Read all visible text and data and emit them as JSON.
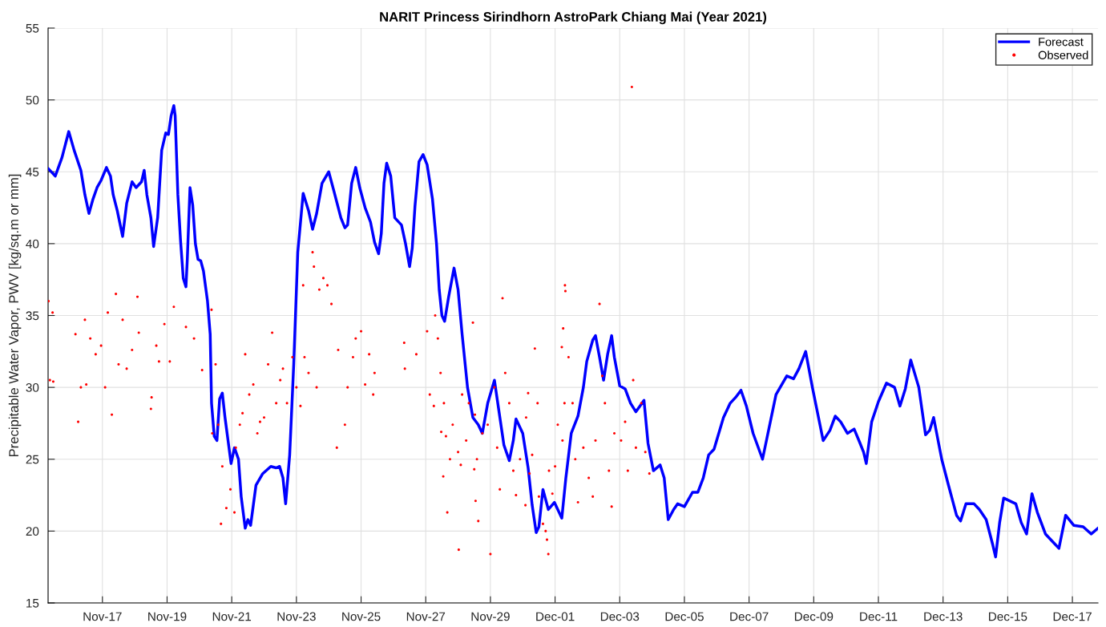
{
  "chart_data": {
    "type": "line",
    "title": "NARIT Princess Sirindhorn AstroPark Chiang Mai (Year 2021)",
    "ylabel": "Precipitable Water Vapor, PWV [kg/sq.m or mm]",
    "xlim": [
      "2021-11-15T07:40",
      "2021-12-17T19:00"
    ],
    "xticks": [
      {
        "value": "2021-11-17",
        "label": "Nov-17"
      },
      {
        "value": "2021-11-19",
        "label": "Nov-19"
      },
      {
        "value": "2021-11-21",
        "label": "Nov-21"
      },
      {
        "value": "2021-11-23",
        "label": "Nov-23"
      },
      {
        "value": "2021-11-25",
        "label": "Nov-25"
      },
      {
        "value": "2021-11-27",
        "label": "Nov-27"
      },
      {
        "value": "2021-11-29",
        "label": "Nov-29"
      },
      {
        "value": "2021-12-01",
        "label": "Dec-01"
      },
      {
        "value": "2021-12-03",
        "label": "Dec-03"
      },
      {
        "value": "2021-12-05",
        "label": "Dec-05"
      },
      {
        "value": "2021-12-07",
        "label": "Dec-07"
      },
      {
        "value": "2021-12-09",
        "label": "Dec-09"
      },
      {
        "value": "2021-12-11",
        "label": "Dec-11"
      },
      {
        "value": "2021-12-13",
        "label": "Dec-13"
      },
      {
        "value": "2021-12-15",
        "label": "Dec-15"
      },
      {
        "value": "2021-12-17",
        "label": "Dec-17"
      }
    ],
    "ylim": [
      15,
      55
    ],
    "yticks": [
      15,
      20,
      25,
      30,
      35,
      40,
      45,
      50,
      55
    ],
    "grid": true,
    "legend": "top right",
    "series": [
      {
        "name": "Forecast",
        "color": "#0000ff",
        "marker": "none",
        "line_style": "solid",
        "x": [
          "2021-11-15T08:00",
          "2021-11-15T13:00",
          "2021-11-15T18:00",
          "2021-11-15T23:00",
          "2021-11-16T03:00",
          "2021-11-16T08:00",
          "2021-11-16T11:00",
          "2021-11-16T14:00",
          "2021-11-16T17:00",
          "2021-11-16T20:00",
          "2021-11-16T23:00",
          "2021-11-17T03:00",
          "2021-11-17T06:00",
          "2021-11-17T08:00",
          "2021-11-17T11:00",
          "2021-11-17T15:00",
          "2021-11-17T18:00",
          "2021-11-17T22:00",
          "2021-11-18T01:00",
          "2021-11-18T05:00",
          "2021-11-18T07:00",
          "2021-11-18T09:00",
          "2021-11-18T12:00",
          "2021-11-18T14:00",
          "2021-11-18T17:00",
          "2021-11-18T20:00",
          "2021-11-18T23:00",
          "2021-11-19T01:00",
          "2021-11-19T03:00",
          "2021-11-19T05:00",
          "2021-11-19T06:00",
          "2021-11-19T08:00",
          "2021-11-19T10:00",
          "2021-11-19T12:00",
          "2021-11-19T14:00",
          "2021-11-19T15:00",
          "2021-11-19T17:00",
          "2021-11-19T19:00",
          "2021-11-19T21:00",
          "2021-11-19T23:00",
          "2021-11-20T01:00",
          "2021-11-20T03:00",
          "2021-11-20T06:00",
          "2021-11-20T08:00",
          "2021-11-20T09:00",
          "2021-11-20T11:00",
          "2021-11-20T13:00",
          "2021-11-20T15:00",
          "2021-11-20T17:00",
          "2021-11-20T19:00",
          "2021-11-20T23:30",
          "2021-11-21T02:00",
          "2021-11-21T05:00",
          "2021-11-21T07:00",
          "2021-11-21T10:00",
          "2021-11-21T12:00",
          "2021-11-21T14:00",
          "2021-11-21T18:00",
          "2021-11-21T23:00",
          "2021-11-22T05:00",
          "2021-11-22T09:00",
          "2021-11-22T11:30",
          "2021-11-22T14:00",
          "2021-11-22T16:00",
          "2021-11-22T19:00",
          "2021-11-22T22:00",
          "2021-11-23T01:00",
          "2021-11-23T05:00",
          "2021-11-23T09:00",
          "2021-11-23T12:00",
          "2021-11-23T15:00",
          "2021-11-23T19:00",
          "2021-11-24T00:00",
          "2021-11-24T04:00",
          "2021-11-24T09:00",
          "2021-11-24T12:00",
          "2021-11-24T14:00",
          "2021-11-24T17:00",
          "2021-11-24T20:00",
          "2021-11-24T23:00",
          "2021-11-25T03:00",
          "2021-11-25T07:00",
          "2021-11-25T10:00",
          "2021-11-25T13:00",
          "2021-11-25T15:00",
          "2021-11-25T17:00",
          "2021-11-25T19:00",
          "2021-11-25T22:00",
          "2021-11-26T01:00",
          "2021-11-26T06:00",
          "2021-11-26T09:00",
          "2021-11-26T12:00",
          "2021-11-26T14:00",
          "2021-11-26T16:00",
          "2021-11-26T19:00",
          "2021-11-26T22:00",
          "2021-11-27T01:00",
          "2021-11-27T05:00",
          "2021-11-27T08:00",
          "2021-11-27T10:00",
          "2021-11-27T12:00",
          "2021-11-27T14:00",
          "2021-11-27T17:00",
          "2021-11-27T21:00",
          "2021-11-28T00:00",
          "2021-11-28T03:00",
          "2021-11-28T07:00",
          "2021-11-28T11:00",
          "2021-11-28T15:00",
          "2021-11-28T18:00",
          "2021-11-28T22:00",
          "2021-11-29T03:00",
          "2021-11-29T05:00",
          "2021-11-29T10:00",
          "2021-11-29T14:00",
          "2021-11-29T17:00",
          "2021-11-29T19:00",
          "2021-11-30T00:00",
          "2021-11-30T04:00",
          "2021-11-30T07:00",
          "2021-11-30T10:00",
          "2021-11-30T12:00",
          "2021-11-30T15:00",
          "2021-11-30T19:00",
          "2021-11-30T23:30",
          "2021-12-01T05:00",
          "2021-12-01T08:00",
          "2021-12-01T12:00",
          "2021-12-01T17:00",
          "2021-12-01T21:00",
          "2021-12-01T23:30",
          "2021-12-02T04:00",
          "2021-12-02T06:00",
          "2021-12-02T09:00",
          "2021-12-02T12:00",
          "2021-12-02T15:00",
          "2021-12-02T18:00",
          "2021-12-02T20:00",
          "2021-12-03T00:00",
          "2021-12-03T04:00",
          "2021-12-03T08:00",
          "2021-12-03T12:00",
          "2021-12-03T15:00",
          "2021-12-03T18:00",
          "2021-12-03T21:00",
          "2021-12-04T01:00",
          "2021-12-04T06:00",
          "2021-12-04T09:00",
          "2021-12-04T12:00",
          "2021-12-04T16:00",
          "2021-12-04T19:00",
          "2021-12-05T00:00",
          "2021-12-05T06:00",
          "2021-12-05T10:00",
          "2021-12-05T14:00",
          "2021-12-05T18:00",
          "2021-12-05T22:00",
          "2021-12-06T05:00",
          "2021-12-06T10:00",
          "2021-12-06T14:00",
          "2021-12-06T18:00",
          "2021-12-06T22:00",
          "2021-12-07T03:00",
          "2021-12-07T10:00",
          "2021-12-07T20:00",
          "2021-12-08T04:00",
          "2021-12-08T09:00",
          "2021-12-08T13:00",
          "2021-12-08T18:00",
          "2021-12-08T23:00",
          "2021-12-09T07:00",
          "2021-12-09T12:00",
          "2021-12-09T16:00",
          "2021-12-09T20:00",
          "2021-12-10T01:00",
          "2021-12-10T06:00",
          "2021-12-10T10:00",
          "2021-12-10T13:00",
          "2021-12-10T15:00",
          "2021-12-10T19:00",
          "2021-12-11T00:00",
          "2021-12-11T06:00",
          "2021-12-11T12:00",
          "2021-12-11T16:00",
          "2021-12-11T20:00",
          "2021-12-12T00:00",
          "2021-12-12T06:00",
          "2021-12-12T11:00",
          "2021-12-12T14:00",
          "2021-12-12T17:00",
          "2021-12-12T23:00",
          "2021-12-13T04:00",
          "2021-12-13T10:00",
          "2021-12-13T13:00",
          "2021-12-13T17:00",
          "2021-12-13T23:00",
          "2021-12-14T03:00",
          "2021-12-14T08:00",
          "2021-12-14T13:00",
          "2021-12-14T15:00",
          "2021-12-14T18:00",
          "2021-12-14T21:00",
          "2021-12-15T06:00",
          "2021-12-15T10:00",
          "2021-12-15T14:00",
          "2021-12-15T18:00",
          "2021-12-15T22:00",
          "2021-12-16T04:00",
          "2021-12-16T10:00",
          "2021-12-16T14:00",
          "2021-12-16T19:00",
          "2021-12-17T01:00",
          "2021-12-17T08:00",
          "2021-12-17T14:00",
          "2021-12-17T19:00"
        ],
        "values": [
          45.2,
          44.7,
          46.0,
          47.8,
          46.5,
          45.1,
          43.4,
          42.1,
          43.1,
          43.9,
          44.4,
          45.3,
          44.7,
          43.4,
          42.3,
          40.5,
          42.8,
          44.3,
          43.9,
          44.3,
          45.1,
          43.4,
          41.8,
          39.8,
          41.8,
          46.5,
          47.7,
          47.6,
          48.9,
          49.6,
          48.9,
          43.4,
          40.2,
          37.6,
          37.0,
          38.9,
          43.9,
          42.7,
          40.0,
          38.9,
          38.8,
          38.1,
          36.0,
          33.7,
          28.9,
          26.6,
          26.3,
          29.2,
          29.6,
          27.9,
          24.7,
          25.8,
          25.0,
          22.4,
          20.2,
          20.8,
          20.4,
          23.2,
          24.0,
          24.5,
          24.4,
          24.5,
          23.7,
          21.9,
          25.3,
          31.6,
          39.4,
          43.5,
          42.3,
          41.0,
          42.1,
          44.2,
          45.0,
          43.6,
          41.8,
          41.1,
          41.3,
          44.2,
          45.3,
          43.9,
          42.5,
          41.5,
          40.1,
          39.3,
          40.7,
          44.2,
          45.6,
          44.7,
          41.8,
          41.3,
          40.0,
          38.4,
          39.7,
          42.6,
          45.7,
          46.2,
          45.5,
          43.1,
          40.0,
          36.8,
          35.0,
          34.6,
          36.3,
          38.3,
          36.8,
          33.7,
          30.0,
          27.9,
          27.4,
          26.8,
          28.9,
          30.5,
          29.2,
          26.0,
          24.9,
          26.3,
          27.8,
          26.8,
          24.4,
          21.8,
          19.9,
          20.3,
          22.9,
          21.5,
          22.0,
          20.9,
          23.7,
          26.8,
          28.0,
          30.0,
          31.8,
          33.3,
          33.6,
          32.1,
          30.5,
          32.3,
          33.6,
          32.1,
          30.1,
          29.9,
          28.9,
          28.3,
          28.7,
          29.1,
          26.1,
          24.2,
          24.6,
          23.7,
          20.8,
          21.5,
          21.9,
          21.7,
          22.7,
          22.7,
          23.7,
          25.3,
          25.7,
          27.9,
          28.9,
          29.3,
          29.8,
          28.7,
          26.8,
          25.0,
          29.5,
          30.8,
          30.6,
          31.3,
          32.5,
          30.0,
          26.3,
          27.0,
          28.0,
          27.6,
          26.8,
          27.1,
          26.2,
          25.5,
          24.7,
          27.6,
          29.0,
          30.3,
          30.0,
          28.7,
          29.9,
          31.9,
          30.0,
          26.7,
          27.0,
          27.9,
          25.0,
          23.2,
          21.1,
          20.7,
          21.9,
          21.9,
          21.5,
          20.8,
          19.0,
          18.2,
          20.6,
          22.3,
          21.9,
          20.6,
          19.8,
          22.6,
          21.3,
          19.8,
          19.2,
          18.8,
          21.1,
          20.4,
          20.3,
          19.8,
          20.2
        ]
      },
      {
        "name": "Observed",
        "type": "scatter",
        "color": "#ff0000",
        "marker": "circle",
        "x": [
          "2021-11-15T08:00",
          "2021-11-15T09:00",
          "2021-11-15T11:00",
          "2021-11-15T11:30",
          "2021-11-16T04:00",
          "2021-11-16T06:00",
          "2021-11-16T08:00",
          "2021-11-16T11:00",
          "2021-11-16T12:00",
          "2021-11-16T15:00",
          "2021-11-16T19:00",
          "2021-11-16T23:00",
          "2021-11-17T02:00",
          "2021-11-17T04:00",
          "2021-11-17T07:00",
          "2021-11-17T10:00",
          "2021-11-17T12:00",
          "2021-11-17T15:00",
          "2021-11-17T18:00",
          "2021-11-17T22:00",
          "2021-11-18T02:00",
          "2021-11-18T03:00",
          "2021-11-18T12:00",
          "2021-11-18T12:30",
          "2021-11-18T16:00",
          "2021-11-18T18:00",
          "2021-11-18T22:00",
          "2021-11-19T02:00",
          "2021-11-19T05:00",
          "2021-11-19T14:00",
          "2021-11-19T20:00",
          "2021-11-20T02:00",
          "2021-11-20T09:00",
          "2021-11-20T09:30",
          "2021-11-20T12:00",
          "2021-11-20T14:00",
          "2021-11-20T16:00",
          "2021-11-20T17:00",
          "2021-11-20T20:00",
          "2021-11-20T23:00",
          "2021-11-21T02:00",
          "2021-11-21T03:00",
          "2021-11-21T06:00",
          "2021-11-21T08:00",
          "2021-11-21T10:00",
          "2021-11-21T13:00",
          "2021-11-21T16:00",
          "2021-11-21T19:00",
          "2021-11-21T21:00",
          "2021-11-22T00:00",
          "2021-11-22T03:00",
          "2021-11-22T06:00",
          "2021-11-22T09:00",
          "2021-11-22T12:00",
          "2021-11-22T14:00",
          "2021-11-22T17:00",
          "2021-11-22T21:00",
          "2021-11-23T00:00",
          "2021-11-23T03:00",
          "2021-11-23T05:00",
          "2021-11-23T06:00",
          "2021-11-23T09:00",
          "2021-11-23T12:00",
          "2021-11-23T13:00",
          "2021-11-23T15:00",
          "2021-11-23T17:00",
          "2021-11-23T20:00",
          "2021-11-23T23:00",
          "2021-11-24T02:00",
          "2021-11-24T06:00",
          "2021-11-24T07:00",
          "2021-11-24T12:00",
          "2021-11-24T14:00",
          "2021-11-24T18:00",
          "2021-11-24T20:00",
          "2021-11-25T00:00",
          "2021-11-25T03:00",
          "2021-11-25T06:00",
          "2021-11-25T09:00",
          "2021-11-25T10:00",
          "2021-11-26T08:00",
          "2021-11-26T08:30",
          "2021-11-26T17:00",
          "2021-11-27T01:00",
          "2021-11-27T03:00",
          "2021-11-27T06:00",
          "2021-11-27T07:00",
          "2021-11-27T09:00",
          "2021-11-27T11:00",
          "2021-11-27T11:30",
          "2021-11-27T13:00",
          "2021-11-27T13:30",
          "2021-11-27T15:00",
          "2021-11-27T16:00",
          "2021-11-27T18:00",
          "2021-11-27T20:00",
          "2021-11-28T00:00",
          "2021-11-28T00:30",
          "2021-11-28T02:00",
          "2021-11-28T03:00",
          "2021-11-28T06:00",
          "2021-11-28T08:00",
          "2021-11-28T11:00",
          "2021-11-28T12:00",
          "2021-11-28T12:30",
          "2021-11-28T13:00",
          "2021-11-28T14:00",
          "2021-11-28T15:00",
          "2021-11-28T18:00",
          "2021-11-28T22:00",
          "2021-11-29T00:00",
          "2021-11-29T03:00",
          "2021-11-29T05:00",
          "2021-11-29T07:00",
          "2021-11-29T09:00",
          "2021-11-29T11:00",
          "2021-11-29T14:00",
          "2021-11-29T17:00",
          "2021-11-29T19:00",
          "2021-11-29T22:00",
          "2021-11-30T02:00",
          "2021-11-30T02:30",
          "2021-11-30T04:00",
          "2021-11-30T05:00",
          "2021-11-30T07:00",
          "2021-11-30T09:00",
          "2021-11-30T11:00",
          "2021-11-30T12:00",
          "2021-11-30T15:00",
          "2021-11-30T17:00",
          "2021-11-30T18:00",
          "2021-11-30T19:00",
          "2021-11-30T19:30",
          "2021-11-30T22:00",
          "2021-12-01T00:00",
          "2021-12-01T02:00",
          "2021-12-01T05:00",
          "2021-12-01T05:30",
          "2021-12-01T06:00",
          "2021-12-01T07:00",
          "2021-12-01T07:20",
          "2021-12-01T07:40",
          "2021-12-01T10:00",
          "2021-12-01T13:00",
          "2021-12-01T15:00",
          "2021-12-01T17:00",
          "2021-12-01T21:00",
          "2021-12-02T01:00",
          "2021-12-02T04:00",
          "2021-12-02T06:00",
          "2021-12-02T09:00",
          "2021-12-02T11:00",
          "2021-12-02T13:00",
          "2021-12-02T16:00",
          "2021-12-02T18:00",
          "2021-12-02T20:00",
          "2021-12-03T01:00",
          "2021-12-03T04:00",
          "2021-12-03T06:00",
          "2021-12-03T09:00",
          "2021-12-03T10:00",
          "2021-12-03T12:00",
          "2021-12-03T16:00",
          "2021-12-03T19:00",
          "2021-12-03T22:00"
        ],
        "values": [
          36.0,
          30.5,
          35.2,
          30.4,
          33.7,
          27.6,
          30.0,
          34.7,
          30.2,
          33.4,
          32.3,
          32.9,
          30.0,
          35.2,
          28.1,
          36.5,
          31.6,
          34.7,
          31.3,
          32.6,
          36.3,
          33.8,
          28.5,
          29.3,
          32.9,
          31.8,
          34.4,
          31.8,
          35.6,
          34.2,
          33.4,
          31.2,
          35.4,
          26.8,
          31.6,
          27.4,
          20.5,
          24.5,
          21.6,
          22.9,
          21.3,
          25.8,
          27.4,
          28.2,
          32.3,
          29.5,
          30.2,
          26.8,
          27.6,
          27.9,
          31.6,
          33.8,
          28.9,
          30.5,
          31.3,
          28.9,
          32.1,
          30.0,
          28.7,
          37.1,
          32.1,
          31.0,
          39.4,
          38.4,
          30.0,
          36.8,
          37.6,
          37.1,
          35.8,
          25.8,
          32.6,
          27.4,
          30.0,
          32.1,
          33.4,
          33.9,
          30.2,
          32.3,
          29.5,
          31.0,
          33.1,
          31.3,
          32.3,
          33.9,
          29.5,
          28.7,
          35.0,
          33.4,
          31.0,
          26.9,
          23.8,
          28.9,
          26.6,
          21.3,
          25.0,
          27.4,
          25.5,
          18.7,
          24.6,
          29.5,
          26.3,
          28.9,
          34.5,
          24.3,
          28.1,
          22.1,
          25.0,
          20.7,
          26.8,
          27.4,
          18.4,
          30.0,
          25.8,
          22.9,
          36.2,
          31.0,
          28.9,
          24.2,
          22.5,
          25.0,
          21.8,
          27.9,
          29.6,
          24.0,
          25.3,
          32.7,
          28.9,
          22.4,
          20.5,
          20.0,
          19.4,
          18.4,
          24.2,
          22.6,
          24.5,
          27.4,
          32.8,
          26.3,
          34.1,
          28.9,
          37.1,
          36.7,
          32.1,
          28.9,
          25.0,
          22.0,
          25.8,
          23.7,
          22.4,
          26.3,
          35.8,
          30.8,
          28.9,
          24.2,
          21.7,
          26.8,
          26.3,
          27.6,
          24.2,
          50.9,
          30.5,
          25.8,
          28.9,
          25.5,
          24.0
        ]
      }
    ]
  }
}
